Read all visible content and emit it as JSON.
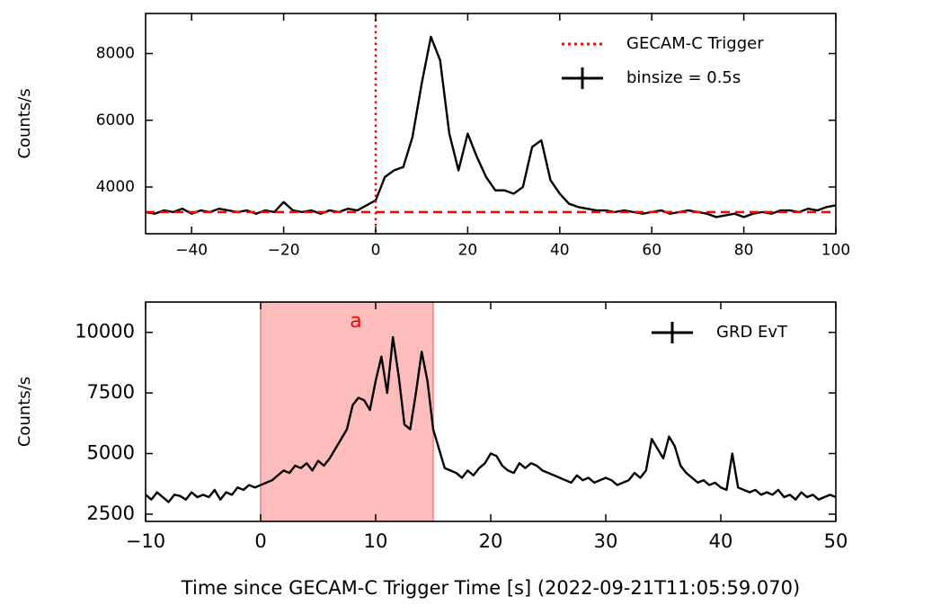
{
  "chart_data": [
    {
      "type": "line",
      "ylabel": "Counts/s",
      "x": [
        -50,
        -48,
        -46,
        -44,
        -42,
        -40,
        -38,
        -36,
        -34,
        -32,
        -30,
        -28,
        -26,
        -24,
        -22,
        -20,
        -18,
        -16,
        -14,
        -12,
        -10,
        -8,
        -6,
        -4,
        -2,
        0,
        2,
        4,
        6,
        8,
        10,
        12,
        14,
        16,
        18,
        20,
        22,
        24,
        26,
        28,
        30,
        32,
        34,
        36,
        38,
        40,
        42,
        44,
        46,
        48,
        50,
        52,
        54,
        56,
        58,
        60,
        62,
        64,
        66,
        68,
        70,
        72,
        74,
        76,
        78,
        80,
        82,
        84,
        86,
        88,
        90,
        92,
        94,
        96,
        98,
        100
      ],
      "series": [
        {
          "name": "binsize = 0.5s",
          "color": "#000000",
          "values": [
            3250,
            3200,
            3300,
            3250,
            3350,
            3200,
            3300,
            3250,
            3350,
            3300,
            3250,
            3300,
            3200,
            3300,
            3250,
            3550,
            3300,
            3250,
            3300,
            3200,
            3300,
            3250,
            3350,
            3300,
            3450,
            3600,
            4300,
            4500,
            4600,
            5500,
            7100,
            8500,
            7800,
            5600,
            4500,
            5600,
            4900,
            4300,
            3900,
            3900,
            3800,
            4000,
            5200,
            5400,
            4200,
            3800,
            3500,
            3400,
            3350,
            3300,
            3300,
            3250,
            3300,
            3250,
            3200,
            3250,
            3300,
            3200,
            3250,
            3300,
            3250,
            3200,
            3100,
            3150,
            3200,
            3100,
            3200,
            3250,
            3200,
            3300,
            3300,
            3250,
            3350,
            3300,
            3400,
            3450
          ]
        }
      ],
      "trigger": {
        "name": "GECAM-C Trigger",
        "x": 0,
        "color": "#ff0000"
      },
      "background": 3250,
      "xlim": [
        -50,
        100
      ],
      "xticks": [
        {
          "value": -40,
          "label": "−40"
        },
        {
          "value": -20,
          "label": "−20"
        },
        0,
        20,
        40,
        60,
        80,
        100
      ],
      "ylim": [
        2600,
        9200
      ],
      "yticks": [
        4000,
        6000,
        8000
      ],
      "legend": "upper right"
    },
    {
      "type": "line",
      "ylabel": "Counts/s",
      "xlabel": "Time since GECAM-C Trigger Time [s] (2022-09-21T11:05:59.070)",
      "x": [
        -10,
        -9.5,
        -9,
        -8.5,
        -8,
        -7.5,
        -7,
        -6.5,
        -6,
        -5.5,
        -5,
        -4.5,
        -4,
        -3.5,
        -3,
        -2.5,
        -2,
        -1.5,
        -1,
        -0.5,
        0,
        0.5,
        1,
        1.5,
        2,
        2.5,
        3,
        3.5,
        4,
        4.5,
        5,
        5.5,
        6,
        6.5,
        7,
        7.5,
        8,
        8.5,
        9,
        9.5,
        10,
        10.5,
        11,
        11.5,
        12,
        12.5,
        13,
        13.5,
        14,
        14.5,
        15,
        15.5,
        16,
        16.5,
        17,
        17.5,
        18,
        18.5,
        19,
        19.5,
        20,
        20.5,
        21,
        21.5,
        22,
        22.5,
        23,
        23.5,
        24,
        24.5,
        25,
        25.5,
        26,
        26.5,
        27,
        27.5,
        28,
        28.5,
        29,
        29.5,
        30,
        30.5,
        31,
        31.5,
        32,
        32.5,
        33,
        33.5,
        34,
        34.5,
        35,
        35.5,
        36,
        36.5,
        37,
        37.5,
        38,
        38.5,
        39,
        39.5,
        40,
        40.5,
        41,
        41.5,
        42,
        42.5,
        43,
        43.5,
        44,
        44.5,
        45,
        45.5,
        46,
        46.5,
        47,
        47.5,
        48,
        48.5,
        49,
        49.5,
        50
      ],
      "series": [
        {
          "name": "GRD EvT",
          "color": "#000000",
          "values": [
            3300,
            3100,
            3400,
            3200,
            3000,
            3300,
            3250,
            3100,
            3400,
            3200,
            3300,
            3200,
            3500,
            3100,
            3400,
            3300,
            3600,
            3500,
            3700,
            3600,
            3700,
            3800,
            3900,
            4100,
            4300,
            4200,
            4500,
            4400,
            4600,
            4300,
            4700,
            4500,
            4800,
            5200,
            5600,
            6000,
            7000,
            7300,
            7200,
            6800,
            8000,
            9000,
            7500,
            9800,
            8200,
            6200,
            6000,
            7500,
            9200,
            8000,
            6000,
            5200,
            4400,
            4300,
            4200,
            4000,
            4300,
            4100,
            4400,
            4600,
            5000,
            4900,
            4500,
            4300,
            4200,
            4600,
            4400,
            4600,
            4500,
            4300,
            4200,
            4100,
            4000,
            3900,
            3800,
            4100,
            3900,
            4000,
            3800,
            3900,
            4000,
            3900,
            3700,
            3800,
            3900,
            4200,
            4000,
            4300,
            5600,
            5200,
            4800,
            5700,
            5300,
            4500,
            4200,
            4000,
            3800,
            3900,
            3700,
            3800,
            3600,
            3500,
            5000,
            3600,
            3500,
            3400,
            3500,
            3300,
            3400,
            3300,
            3500,
            3200,
            3300,
            3100,
            3400,
            3200,
            3300,
            3100,
            3200,
            3300,
            3200
          ]
        }
      ],
      "shade": [
        0,
        15
      ],
      "shade_color": "#ffbcbc",
      "annotation": "a",
      "annotation_color": "#ff0000",
      "xlim": [
        -10,
        50
      ],
      "xticks": [
        {
          "value": -10,
          "label": "−10"
        },
        0,
        10,
        20,
        30,
        40,
        50
      ],
      "ylim": [
        2200,
        11250
      ],
      "yticks": [
        2500,
        5000,
        7500,
        10000
      ],
      "legend": "upper right"
    }
  ]
}
